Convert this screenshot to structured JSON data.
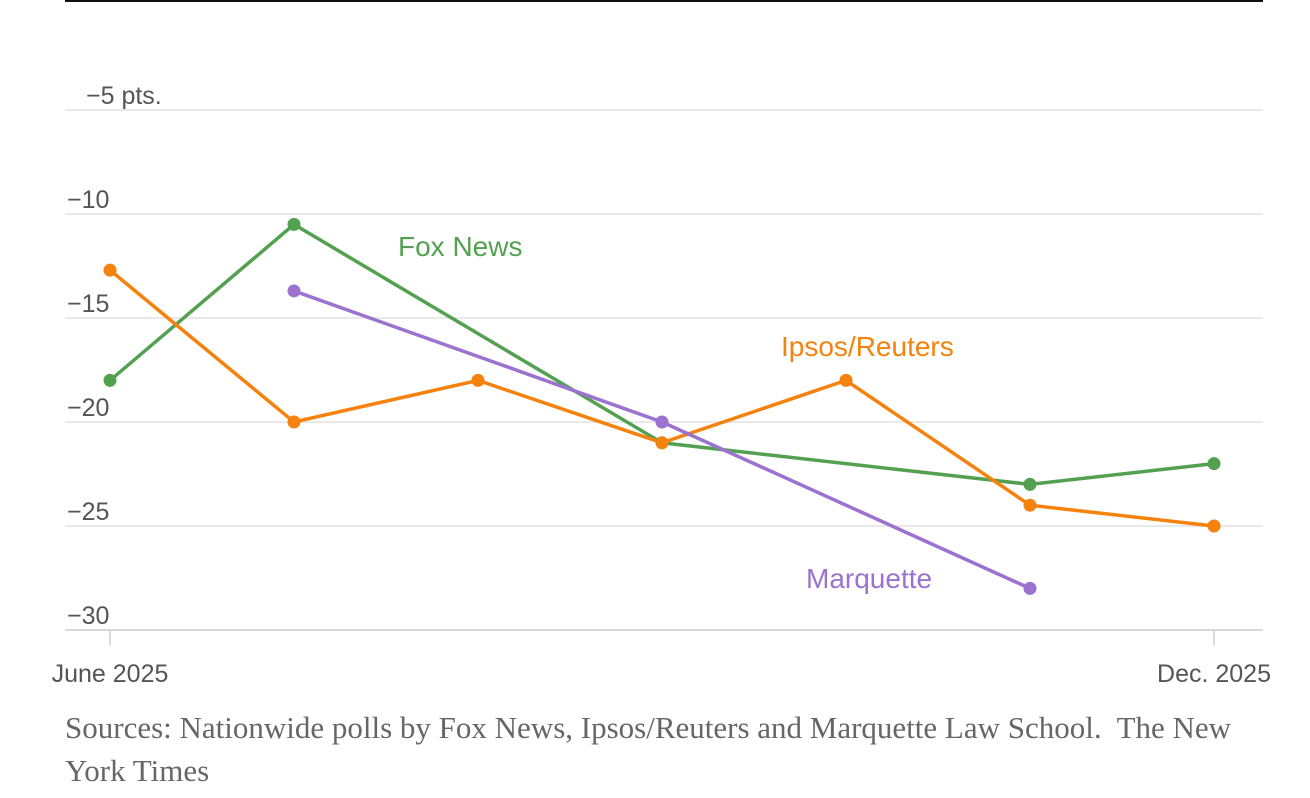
{
  "chart_data": {
    "type": "line",
    "xlim": [
      0,
      6
    ],
    "xticks": [
      {
        "value": 0,
        "label": "June 2025"
      },
      {
        "value": 6,
        "label": "Dec. 2025"
      }
    ],
    "ylim": [
      -30,
      -5
    ],
    "yticks": [
      {
        "value": -5,
        "label": "−5 pts."
      },
      {
        "value": -10,
        "label": "−10"
      },
      {
        "value": -15,
        "label": "−15"
      },
      {
        "value": -20,
        "label": "−20"
      },
      {
        "value": -25,
        "label": "−25"
      },
      {
        "value": -30,
        "label": "−30"
      }
    ],
    "grid": true,
    "series": [
      {
        "name": "Fox News",
        "color": "#53a150",
        "x": [
          0,
          1,
          3,
          5,
          6
        ],
        "values": [
          -18,
          -10.5,
          -21,
          -23,
          -22
        ]
      },
      {
        "name": "Ipsos/Reuters",
        "color": "#f5820d",
        "x": [
          0,
          1,
          2,
          3,
          4,
          5,
          6
        ],
        "values": [
          -12.7,
          -20,
          -18,
          -21,
          -18,
          -24,
          -25
        ]
      },
      {
        "name": "Marquette",
        "color": "#9b72cf",
        "x": [
          1,
          3,
          5
        ],
        "values": [
          -13.7,
          -20,
          -28
        ]
      }
    ],
    "source": "Sources: Nationwide polls by Fox News, Ipsos/Reuters and Marquette Law School.",
    "credit": "The New York Times"
  }
}
